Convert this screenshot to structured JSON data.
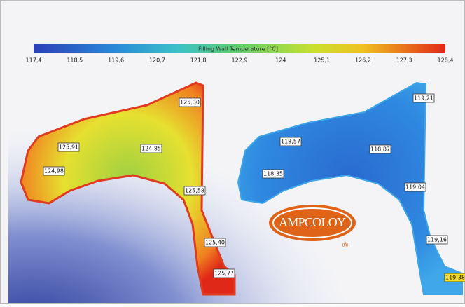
{
  "colorbar": {
    "title": "Filling Wall Temperature [°C]",
    "ticks": [
      "117,4",
      "118,5",
      "119,6",
      "120,7",
      "121,8",
      "122,9",
      "124",
      "125,1",
      "126,2",
      "127,3",
      "128,4"
    ]
  },
  "left_part": {
    "labels": [
      "125,30",
      "125,91",
      "124,85",
      "124,98",
      "125,58",
      "125,40",
      "125,77"
    ]
  },
  "right_part": {
    "labels": [
      "119,21",
      "118,57",
      "118,87",
      "118,35",
      "119,04",
      "119,16",
      "119,38"
    ]
  },
  "logo": {
    "text": "AMPCOLOY",
    "mark": "®"
  }
}
